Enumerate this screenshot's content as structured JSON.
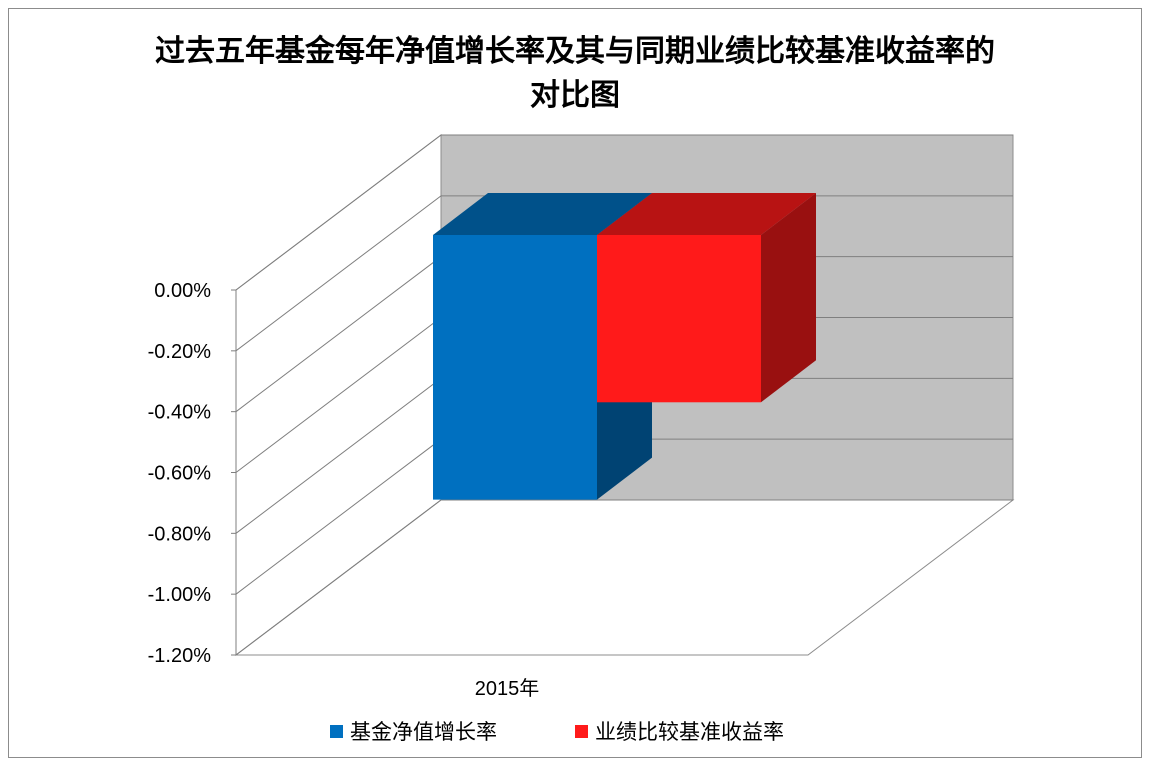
{
  "chart_data": {
    "type": "bar",
    "title": [
      "过去五年基金每年净值增长率及其与同期业绩比较基准收益率的",
      "对比图"
    ],
    "categories": [
      "2015年"
    ],
    "series": [
      {
        "name": "基金净值增长率",
        "values": [
          -0.87
        ],
        "color": "#0070C0"
      },
      {
        "name": "业绩比较基准收益率",
        "values": [
          -0.55
        ],
        "color": "#FF1A1A"
      }
    ],
    "y_ticks": [
      "0.00%",
      "-0.20%",
      "-0.40%",
      "-0.60%",
      "-0.80%",
      "-1.00%",
      "-1.20%"
    ],
    "ylim": [
      -1.2,
      0
    ],
    "grid": true,
    "legend": "bottom",
    "style": "3d-clustered-column"
  }
}
